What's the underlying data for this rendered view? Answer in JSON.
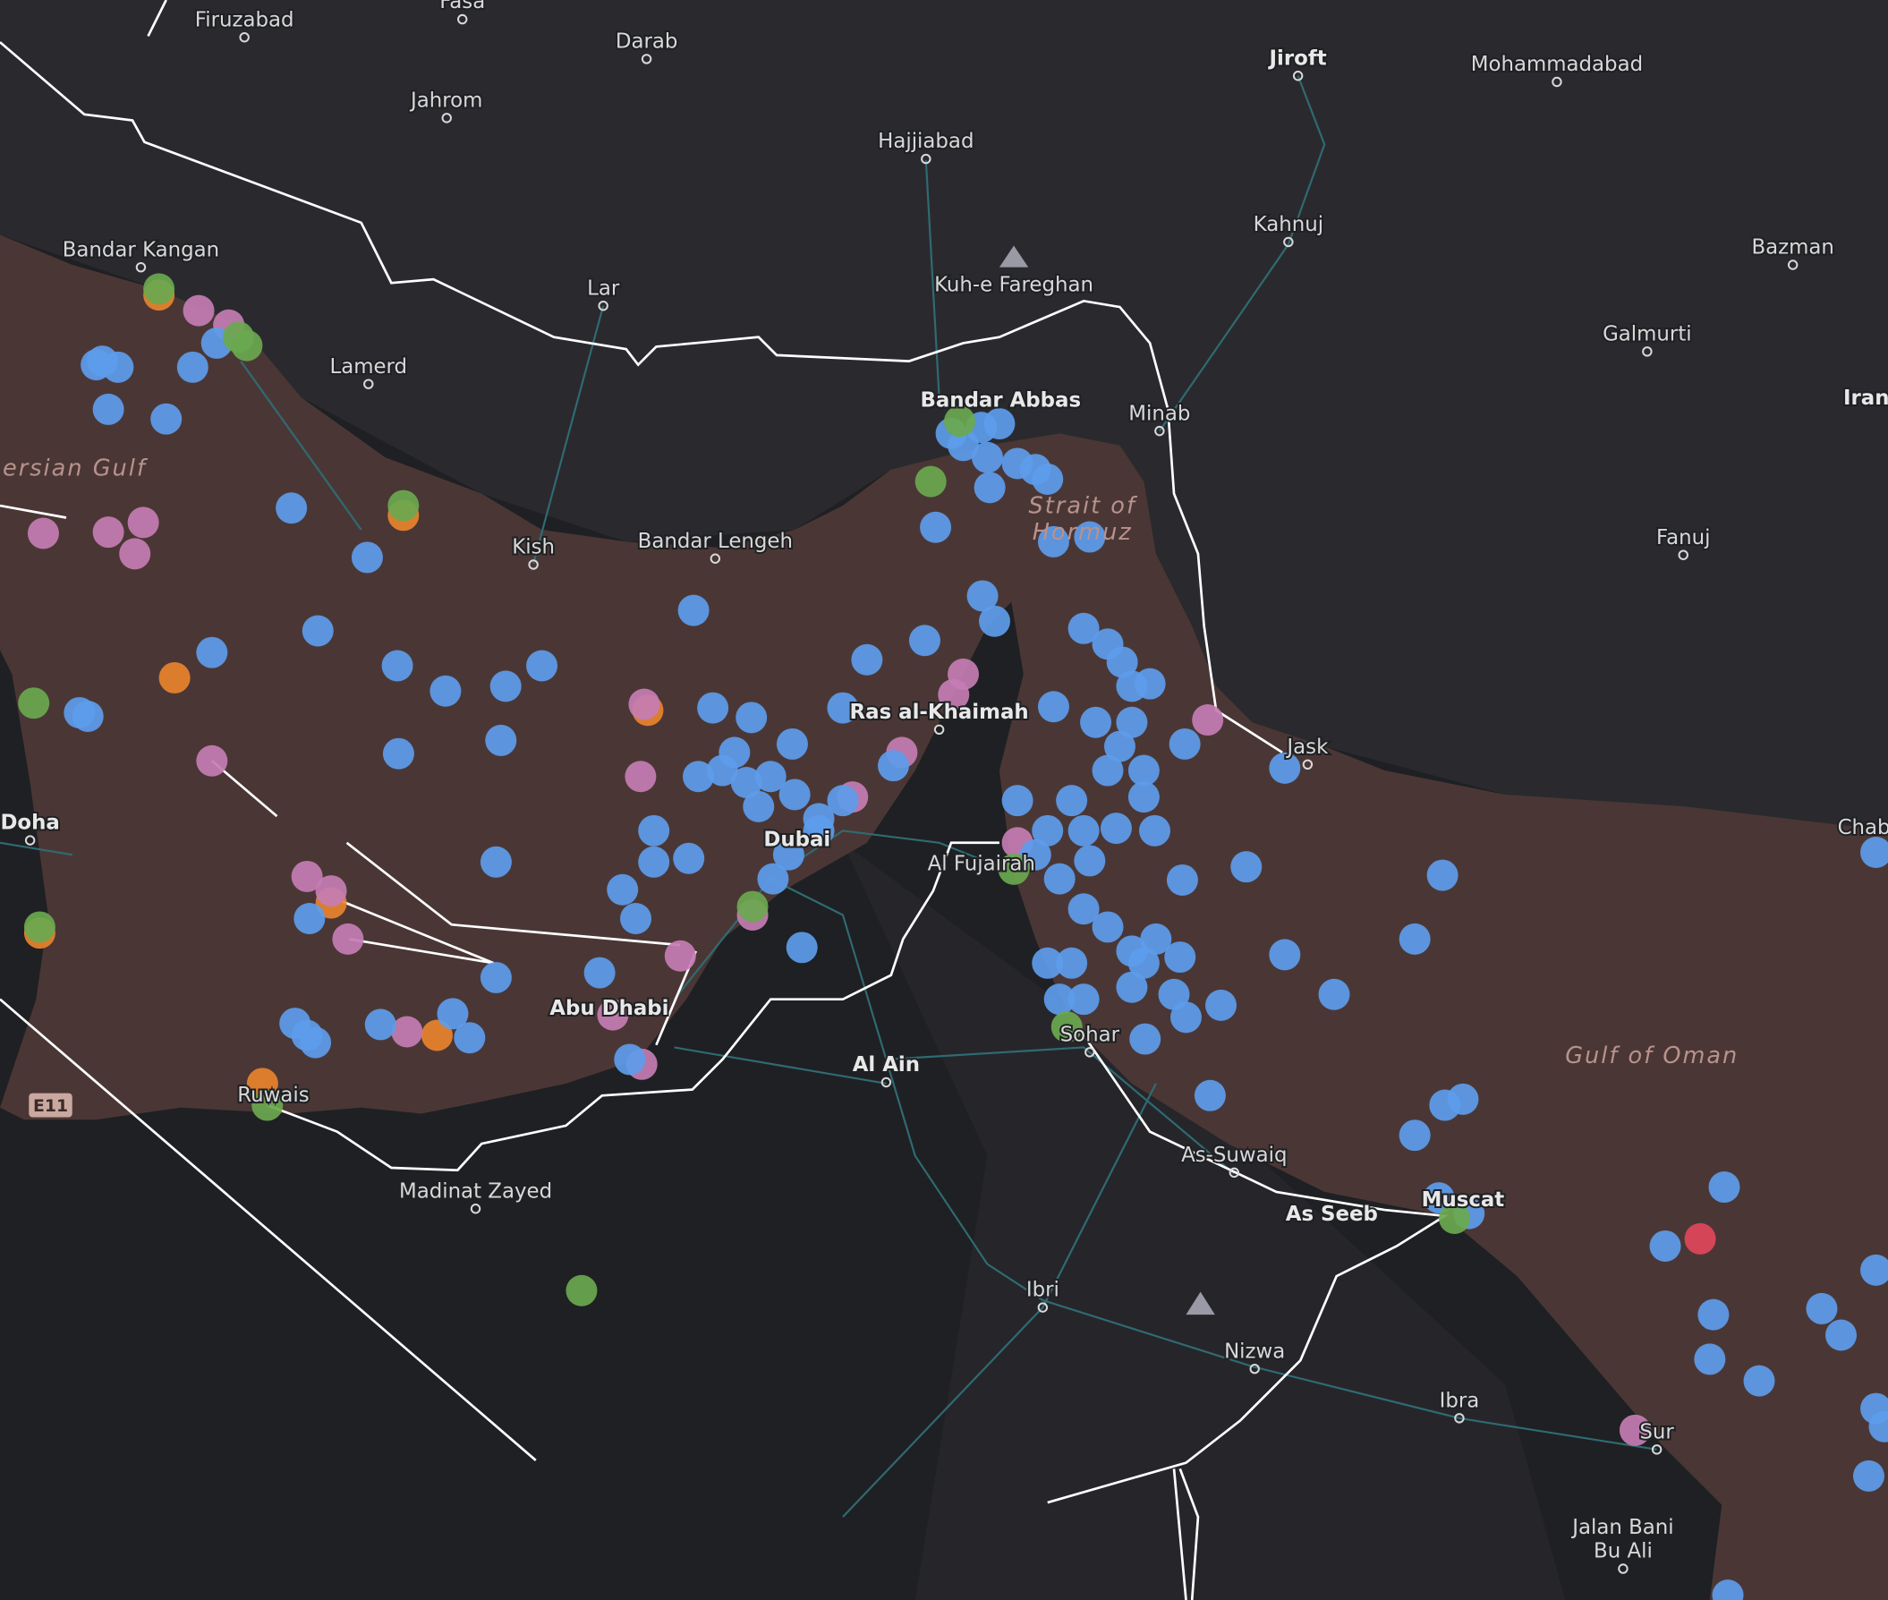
{
  "places": [
    "Firuzabad",
    "Fasa",
    "Darab",
    "Jahrom",
    "Jiroft",
    "Mohammadabad",
    "Hajjiabad",
    "Kahnuj",
    "Bazman",
    "Bandar Kangan",
    "Lar",
    "Kuh-e Fareghan",
    "Galmurti",
    "Lamerd",
    "Bandar Abbas",
    "Minab",
    "Iran",
    "Kish",
    "Bandar Lengeh",
    "Fanuj",
    "Ras al-Khaimah",
    "Jask",
    "Doha",
    "Chab",
    "Dubai",
    "Al Fujairah",
    "Abu Dhabi",
    "Sohar",
    "Al Ain",
    "Ruwais",
    "As-Suwaiq",
    "Muscat",
    "As Seeb",
    "Madinat Zayed",
    "Ibri",
    "Nizwa",
    "Ibra",
    "Sur",
    "Jalan Bani",
    "Bu Ali"
  ],
  "water_bodies": [
    "ersian Gulf",
    "Strait of",
    "Hormuz",
    "Gulf of Oman"
  ],
  "road_shield": "E11"
}
